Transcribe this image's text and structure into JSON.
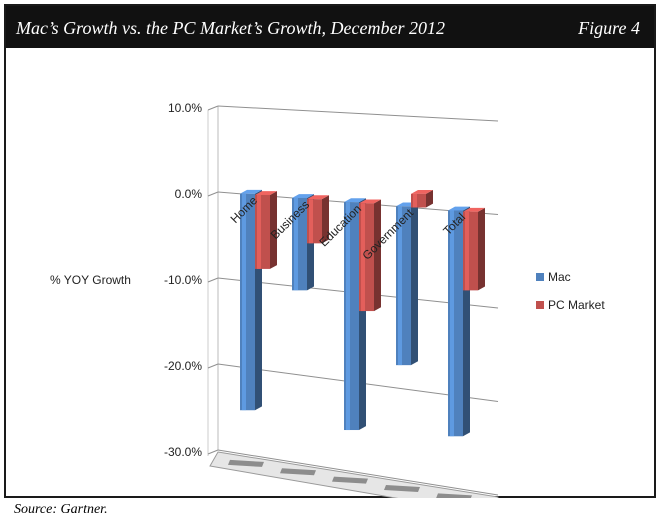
{
  "header": {
    "title": "Mac’s Growth vs. the PC Market’s Growth, December 2012",
    "figure_label": "Figure 4"
  },
  "source": "Source: Gartner.",
  "chart_data": {
    "type": "bar",
    "style": "3d-clustered-column",
    "ylabel": "% YOY Growth",
    "ylim": [
      -30,
      10
    ],
    "y_ticks": [
      "10.0%",
      "0.0%",
      "-10.0%",
      "-20.0%",
      "-30.0%"
    ],
    "categories": [
      "Home",
      "Business",
      "Education",
      "Government",
      "Total"
    ],
    "series": [
      {
        "name": "Mac",
        "color": "#4f81bd",
        "values": [
          -25.0,
          -10.5,
          -25.5,
          -17.5,
          -24.5
        ]
      },
      {
        "name": "PC Market",
        "color": "#c0504d",
        "values": [
          -8.5,
          -5.0,
          -12.0,
          1.5,
          -8.5
        ]
      }
    ],
    "legend_position": "right",
    "grid": true
  }
}
